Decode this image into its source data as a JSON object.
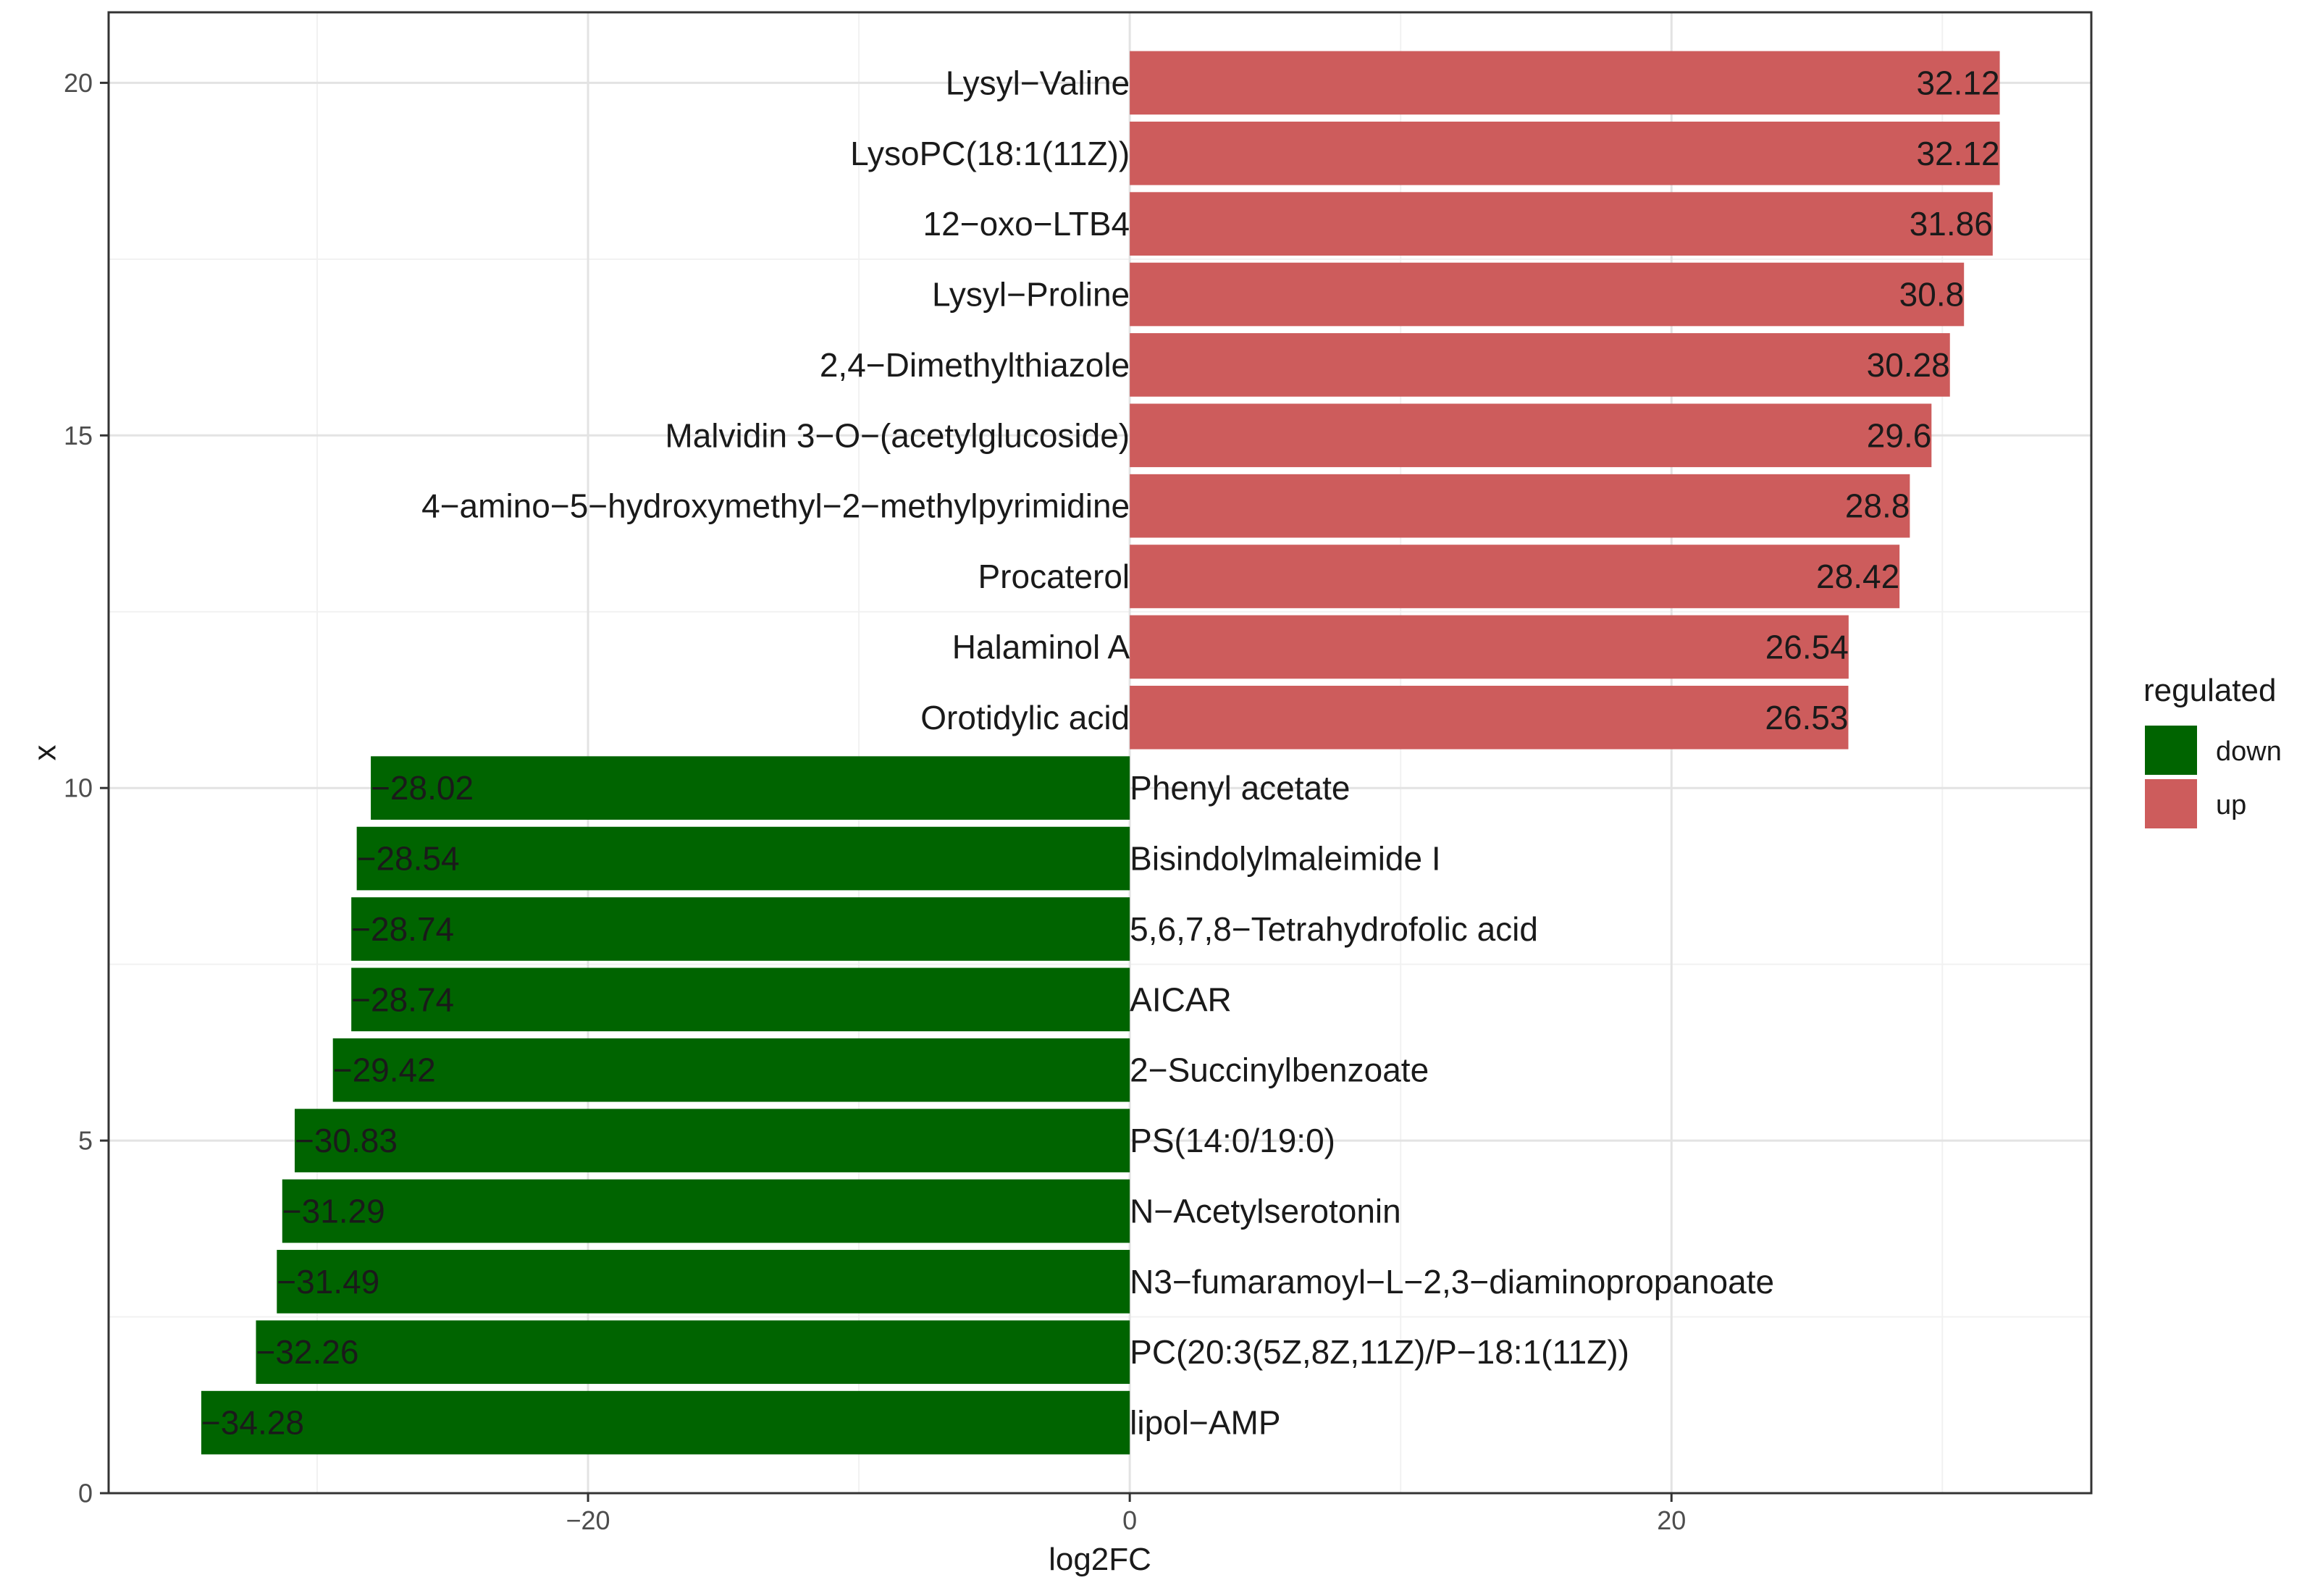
{
  "chart_data": {
    "type": "bar",
    "orientation": "horizontal",
    "title": "",
    "xlabel": "log2FC",
    "ylabel": "x",
    "xlim": [
      -37.7,
      35.5
    ],
    "ylim": [
      0,
      21
    ],
    "xticks": [
      -20,
      0,
      20
    ],
    "xtick_labels": [
      "−20",
      "0",
      "20"
    ],
    "yticks": [
      0,
      5,
      10,
      15,
      20
    ],
    "ytick_labels": [
      "0",
      "5",
      "10",
      "15",
      "20"
    ],
    "grid": true,
    "legend": {
      "title": "regulated",
      "position": "right",
      "entries": [
        {
          "label": "down",
          "color": "#006400"
        },
        {
          "label": "up",
          "color": "#CD5C5C"
        }
      ]
    },
    "bars": [
      {
        "x": 20,
        "name": "Lysyl−Valine",
        "value": 32.12,
        "label": "32.12",
        "group": "up"
      },
      {
        "x": 19,
        "name": "LysoPC(18:1(11Z))",
        "value": 32.12,
        "label": "32.12",
        "group": "up"
      },
      {
        "x": 18,
        "name": "12−oxo−LTB4",
        "value": 31.86,
        "label": "31.86",
        "group": "up"
      },
      {
        "x": 17,
        "name": "Lysyl−Proline",
        "value": 30.8,
        "label": "30.8",
        "group": "up"
      },
      {
        "x": 16,
        "name": "2,4−Dimethylthiazole",
        "value": 30.28,
        "label": "30.28",
        "group": "up"
      },
      {
        "x": 15,
        "name": "Malvidin 3−O−(acetylglucoside)",
        "value": 29.6,
        "label": "29.6",
        "group": "up"
      },
      {
        "x": 14,
        "name": "4−amino−5−hydroxymethyl−2−methylpyrimidine",
        "value": 28.8,
        "label": "28.8",
        "group": "up"
      },
      {
        "x": 13,
        "name": "Procaterol",
        "value": 28.42,
        "label": "28.42",
        "group": "up"
      },
      {
        "x": 12,
        "name": "Halaminol A",
        "value": 26.54,
        "label": "26.54",
        "group": "up"
      },
      {
        "x": 11,
        "name": "Orotidylic acid",
        "value": 26.53,
        "label": "26.53",
        "group": "up"
      },
      {
        "x": 10,
        "name": "Phenyl acetate",
        "value": -28.02,
        "label": "−28.02",
        "group": "down"
      },
      {
        "x": 9,
        "name": "Bisindolylmaleimide I",
        "value": -28.54,
        "label": "−28.54",
        "group": "down"
      },
      {
        "x": 8,
        "name": "5,6,7,8−Tetrahydrofolic acid",
        "value": -28.74,
        "label": "−28.74",
        "group": "down"
      },
      {
        "x": 7,
        "name": "AICAR",
        "value": -28.74,
        "label": "−28.74",
        "group": "down"
      },
      {
        "x": 6,
        "name": "2−Succinylbenzoate",
        "value": -29.42,
        "label": "−29.42",
        "group": "down"
      },
      {
        "x": 5,
        "name": "PS(14:0/19:0)",
        "value": -30.83,
        "label": "−30.83",
        "group": "down"
      },
      {
        "x": 4,
        "name": "N−Acetylserotonin",
        "value": -31.29,
        "label": "−31.29",
        "group": "down"
      },
      {
        "x": 3,
        "name": "N3−fumaramoyl−L−2,3−diaminopropanoate",
        "value": -31.49,
        "label": "−31.49",
        "group": "down"
      },
      {
        "x": 2,
        "name": "PC(20:3(5Z,8Z,11Z)/P−18:1(11Z))",
        "value": -32.26,
        "label": "−32.26",
        "group": "down"
      },
      {
        "x": 1,
        "name": "lipol−AMP",
        "value": -34.28,
        "label": "−34.28",
        "group": "down"
      }
    ]
  }
}
